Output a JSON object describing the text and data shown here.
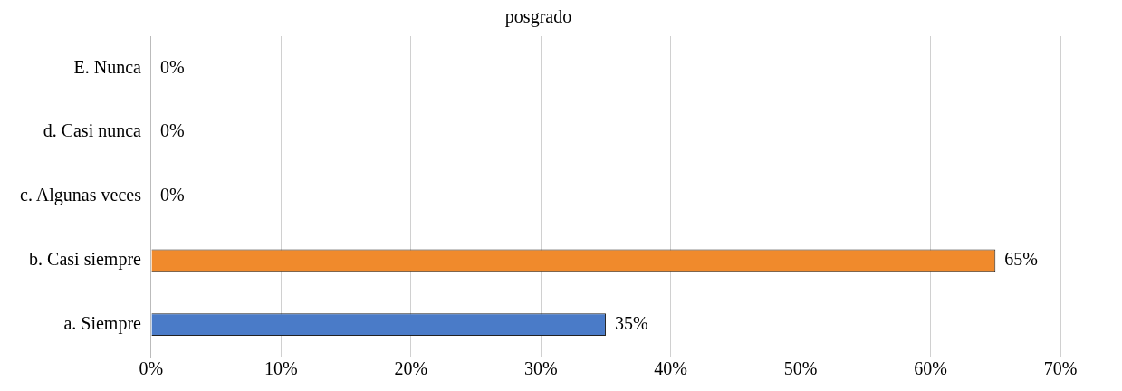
{
  "chart_data": {
    "type": "bar",
    "title": "posgrado",
    "orientation": "horizontal",
    "categories": [
      "E. Nunca",
      "d. Casi nunca",
      "c. Algunas veces",
      "b. Casi siempre",
      "a. Siempre"
    ],
    "values": [
      0,
      0,
      0,
      65,
      35
    ],
    "colors": [
      "#4a7bc8",
      "#f08a2c",
      "#4a7bc8",
      "#f08a2c",
      "#4a7bc8"
    ],
    "value_labels": [
      "0%",
      "0%",
      "0%",
      "65%",
      "35%"
    ],
    "xlim": [
      0,
      70
    ],
    "xticks": [
      {
        "value": 0,
        "label": "0%"
      },
      {
        "value": 10,
        "label": "10%"
      },
      {
        "value": 20,
        "label": "20%"
      },
      {
        "value": 30,
        "label": "30%"
      },
      {
        "value": 40,
        "label": "40%"
      },
      {
        "value": 50,
        "label": "50%"
      },
      {
        "value": 60,
        "label": "60%"
      },
      {
        "value": 70,
        "label": "70%"
      }
    ],
    "grid": "x",
    "legend": false
  }
}
